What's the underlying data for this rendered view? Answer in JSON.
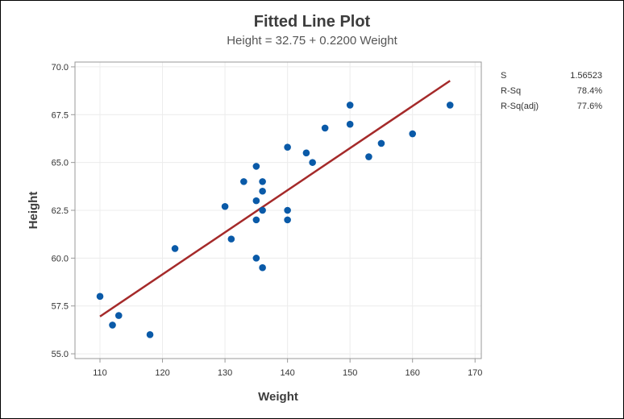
{
  "chart_data": {
    "type": "scatter",
    "title": "Fitted Line Plot",
    "subtitle": "Height = 32.75 + 0.2200 Weight",
    "xlabel": "Weight",
    "ylabel": "Height",
    "xlim": [
      106,
      171
    ],
    "ylim": [
      54.75,
      70.25
    ],
    "xticks": [
      110,
      120,
      130,
      140,
      150,
      160,
      170
    ],
    "yticks": [
      55.0,
      57.5,
      60.0,
      62.5,
      65.0,
      67.5,
      70.0
    ],
    "xtick_labels": [
      "110",
      "120",
      "130",
      "140",
      "150",
      "160",
      "170"
    ],
    "ytick_labels": [
      "55.0",
      "57.5",
      "60.0",
      "62.5",
      "65.0",
      "67.5",
      "70.0"
    ],
    "grid": true,
    "points": [
      {
        "x": 110,
        "y": 58.0
      },
      {
        "x": 112,
        "y": 56.5
      },
      {
        "x": 113,
        "y": 57.0
      },
      {
        "x": 118,
        "y": 56.0
      },
      {
        "x": 122,
        "y": 60.5
      },
      {
        "x": 130,
        "y": 62.7
      },
      {
        "x": 131,
        "y": 61.0
      },
      {
        "x": 133,
        "y": 64.0
      },
      {
        "x": 135,
        "y": 64.8
      },
      {
        "x": 135,
        "y": 63.0
      },
      {
        "x": 135,
        "y": 62.0
      },
      {
        "x": 135,
        "y": 60.0
      },
      {
        "x": 136,
        "y": 64.0
      },
      {
        "x": 136,
        "y": 63.5
      },
      {
        "x": 136,
        "y": 62.5
      },
      {
        "x": 136,
        "y": 59.5
      },
      {
        "x": 140,
        "y": 65.8
      },
      {
        "x": 140,
        "y": 62.5
      },
      {
        "x": 140,
        "y": 62.0
      },
      {
        "x": 143,
        "y": 65.5
      },
      {
        "x": 144,
        "y": 65.0
      },
      {
        "x": 146,
        "y": 66.8
      },
      {
        "x": 150,
        "y": 68.0
      },
      {
        "x": 150,
        "y": 67.0
      },
      {
        "x": 153,
        "y": 65.3
      },
      {
        "x": 155,
        "y": 66.0
      },
      {
        "x": 160,
        "y": 66.5
      },
      {
        "x": 166,
        "y": 68.0
      }
    ],
    "fit_line": {
      "intercept": 32.75,
      "slope": 0.22,
      "x_range": [
        110,
        166
      ]
    },
    "colors": {
      "points": "#0a5aa8",
      "fit_line": "#a52a2a",
      "grid": "#ececec",
      "axis": "#999999"
    }
  },
  "stats": [
    {
      "label": "S",
      "value": "1.56523"
    },
    {
      "label": "R-Sq",
      "value": "78.4%"
    },
    {
      "label": "R-Sq(adj)",
      "value": "77.6%"
    }
  ]
}
